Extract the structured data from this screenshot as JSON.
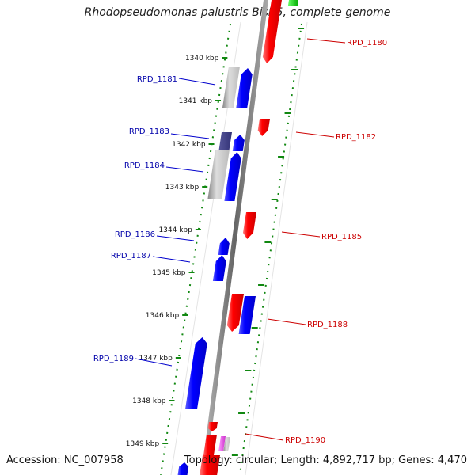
{
  "title": "Rhodopseudomonas palustris BisB5, complete genome",
  "footer": {
    "accession": "Accession: NC_007958",
    "topology": "Topology: circular; Length: 4,892,717 bp; Genes: 4,470"
  },
  "colors": {
    "forward_gene": "#0000ff",
    "reverse_gene": "#ff0000",
    "pseudo_gene": "#aaaaaa",
    "dark_gene": "#333399",
    "rna_gene": "#00cc00",
    "misc_gene": "#cc33cc",
    "tick": "#118811",
    "backbone": "#777777",
    "forward_label": "#0000aa",
    "reverse_label": "#cc0000"
  },
  "scale": [
    {
      "label": "1340 kbp"
    },
    {
      "label": "1341 kbp"
    },
    {
      "label": "1342 kbp"
    },
    {
      "label": "1343 kbp"
    },
    {
      "label": "1344 kbp"
    },
    {
      "label": "1345 kbp"
    },
    {
      "label": "1346 kbp"
    },
    {
      "label": "1347 kbp"
    },
    {
      "label": "1348 kbp"
    },
    {
      "label": "1349 kbp"
    }
  ],
  "genes_forward": [
    {
      "name": "RPD_1181"
    },
    {
      "name": "RPD_1183"
    },
    {
      "name": "RPD_1184"
    },
    {
      "name": "RPD_1186"
    },
    {
      "name": "RPD_1187"
    },
    {
      "name": "RPD_1189"
    }
  ],
  "genes_reverse": [
    {
      "name": "RPD_1180"
    },
    {
      "name": "RPD_1182"
    },
    {
      "name": "RPD_1185"
    },
    {
      "name": "RPD_1188"
    },
    {
      "name": "RPD_1190"
    }
  ]
}
